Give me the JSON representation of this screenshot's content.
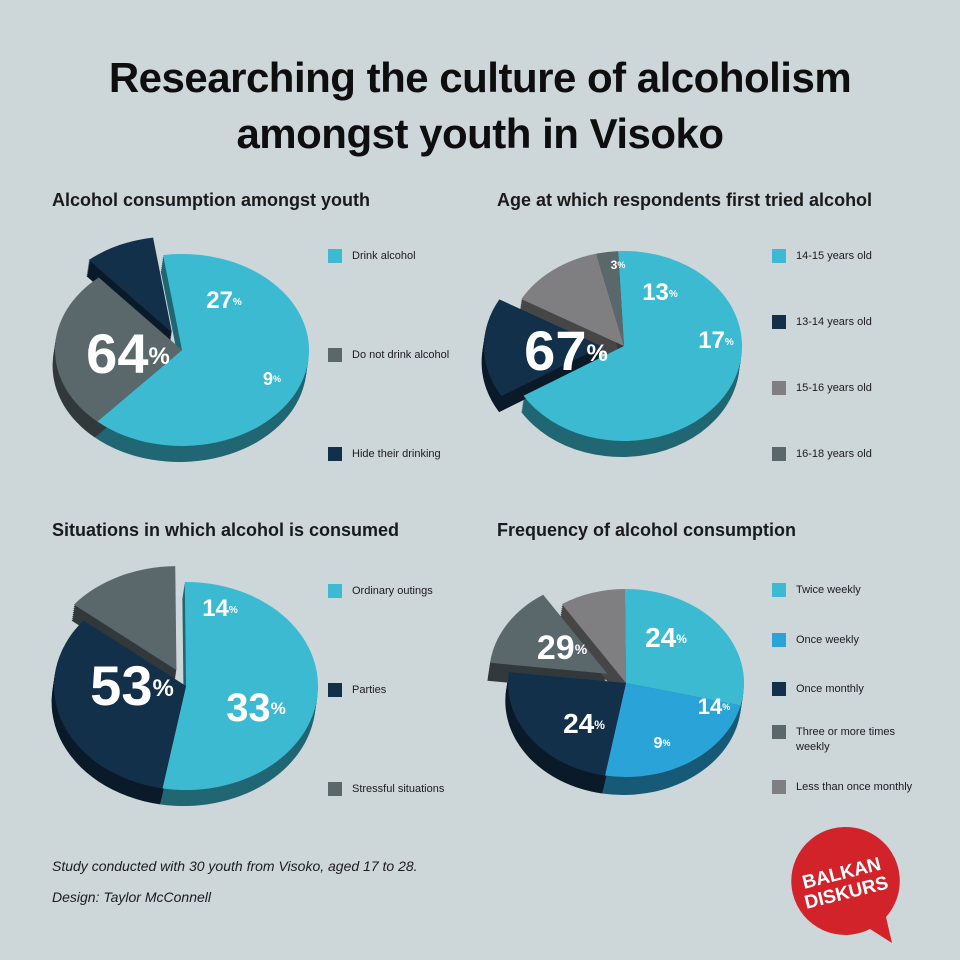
{
  "title": {
    "line1": "Researching the culture of alcoholism",
    "line2": "amongst youth in Visoko"
  },
  "percent_symbol": "%",
  "colors": {
    "background": "#cdd6d9",
    "cyan": "#3bbad1",
    "slate": "#5a676b",
    "navy": "#12304a",
    "gray": "#7f7f81",
    "blue": "#2aa3d8",
    "logo_red": "#d2232a"
  },
  "chart_data": [
    {
      "type": "pie",
      "title": "Alcohol consumption amongst youth",
      "slices": [
        {
          "label": "Drink alcohol",
          "value": 64,
          "color": "#3bbad1"
        },
        {
          "label": "Do not drink alcohol",
          "value": 27,
          "color": "#5a676b"
        },
        {
          "label": "Hide their drinking",
          "value": 9,
          "color": "#12304a"
        }
      ]
    },
    {
      "type": "pie",
      "title": "Age at which respondents first tried alcohol",
      "slices": [
        {
          "label": "14-15 years old",
          "value": 67,
          "color": "#3bbad1"
        },
        {
          "label": "13-14 years old",
          "value": 17,
          "color": "#12304a"
        },
        {
          "label": "15-16 years old",
          "value": 13,
          "color": "#7f7f81"
        },
        {
          "label": "16-18 years old",
          "value": 3,
          "color": "#5a676b"
        }
      ]
    },
    {
      "type": "pie",
      "title": "Situations in which alcohol is consumed",
      "slices": [
        {
          "label": "Ordinary outings",
          "value": 53,
          "color": "#3bbad1"
        },
        {
          "label": "Parties",
          "value": 33,
          "color": "#12304a"
        },
        {
          "label": "Stressful situations",
          "value": 14,
          "color": "#5a676b"
        }
      ]
    },
    {
      "type": "pie",
      "title": "Frequency of alcohol consumption",
      "slices": [
        {
          "label": "Twice weekly",
          "value": 29,
          "color": "#3bbad1"
        },
        {
          "label": "Once weekly",
          "value": 24,
          "color": "#2aa3d8"
        },
        {
          "label": "Once monthly",
          "value": 24,
          "color": "#12304a"
        },
        {
          "label": "Three or more times weekly",
          "value": 14,
          "color": "#5a676b"
        },
        {
          "label": "Less than once monthly",
          "value": 9,
          "color": "#7f7f81"
        }
      ]
    }
  ],
  "footnotes": {
    "study": "Study conducted with 30 youth from Visoko, aged 17 to 28.",
    "design": "Design: Taylor McConnell"
  },
  "logo": {
    "line1": "BALKAN",
    "line2": "DISKURS"
  }
}
